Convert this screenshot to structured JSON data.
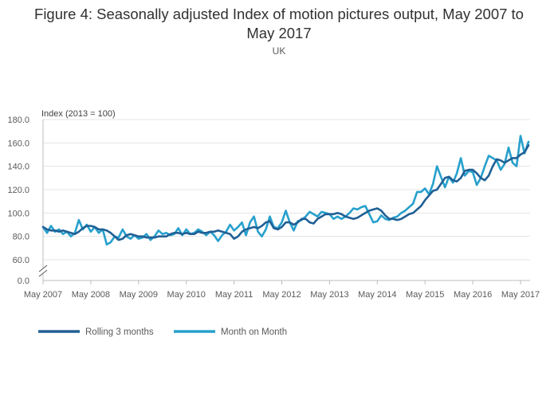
{
  "chart_data": {
    "type": "line",
    "title_lines": [
      "Figure 4: Seasonally adjusted Index of motion pictures output, May 2007 to",
      "May 2017"
    ],
    "subtitle": "UK",
    "ylabel": "Index (2013 = 100)",
    "xlabel": "",
    "ylim": [
      0,
      180
    ],
    "axis_break": true,
    "y_ticks": [
      "0.0",
      "60.0",
      "80.0",
      "100.0",
      "120.0",
      "140.0",
      "160.0",
      "180.0"
    ],
    "x_ticks": [
      "May 2007",
      "May 2008",
      "May 2009",
      "May 2010",
      "May 2011",
      "May 2012",
      "May 2013",
      "May 2014",
      "May 2015",
      "May 2016",
      "May 2017"
    ],
    "legend_position": "bottom-left",
    "colors": {
      "rolling": "#206095",
      "monthly": "#27a0cc",
      "grid": "#e4e4e4",
      "axis": "#bcbcbc"
    },
    "series": [
      {
        "name": "Rolling 3 months",
        "color": "#206095",
        "values": [
          88,
          86,
          85,
          85,
          84,
          85,
          84,
          83,
          82,
          84,
          87,
          89,
          89,
          88,
          86,
          86,
          85,
          83,
          80,
          77,
          78,
          81,
          82,
          81,
          80,
          80,
          79,
          79,
          79,
          80,
          80,
          80,
          82,
          83,
          83,
          82,
          83,
          82,
          82,
          84,
          83,
          83,
          84,
          84,
          85,
          84,
          83,
          82,
          78,
          80,
          84,
          86,
          87,
          88,
          87,
          89,
          92,
          93,
          87,
          86,
          88,
          92,
          92,
          90,
          92,
          95,
          95,
          92,
          91,
          95,
          97,
          99,
          99,
          99,
          100,
          99,
          97,
          96,
          95,
          96,
          98,
          100,
          102,
          103,
          104,
          102,
          98,
          95,
          95,
          94,
          95,
          97,
          99,
          100,
          103,
          106,
          111,
          115,
          119,
          120,
          125,
          130,
          131,
          128,
          127,
          130,
          136,
          137,
          137,
          134,
          130,
          128,
          132,
          140,
          146,
          145,
          143,
          145,
          147,
          147,
          150,
          152,
          158
        ]
      },
      {
        "name": "Month on Month",
        "color": "#27a0cc",
        "values": [
          88,
          83,
          89,
          84,
          86,
          82,
          84,
          80,
          83,
          94,
          86,
          90,
          84,
          88,
          83,
          86,
          73,
          75,
          80,
          79,
          86,
          80,
          78,
          81,
          78,
          79,
          82,
          77,
          80,
          85,
          82,
          83,
          81,
          82,
          87,
          81,
          86,
          82,
          83,
          86,
          84,
          81,
          84,
          81,
          76,
          81,
          84,
          90,
          85,
          88,
          92,
          81,
          92,
          97,
          84,
          80,
          86,
          97,
          88,
          87,
          92,
          102,
          92,
          85,
          93,
          94,
          97,
          101,
          99,
          97,
          101,
          100,
          99,
          95,
          97,
          95,
          97,
          100,
          104,
          103,
          105,
          106,
          99,
          92,
          93,
          98,
          95,
          94,
          96,
          97,
          100,
          102,
          105,
          108,
          118,
          118,
          121,
          116,
          125,
          140,
          131,
          122,
          131,
          126,
          134,
          147,
          132,
          136,
          135,
          124,
          130,
          140,
          149,
          147,
          145,
          137,
          142,
          156,
          143,
          140,
          166,
          151,
          161
        ]
      }
    ]
  }
}
